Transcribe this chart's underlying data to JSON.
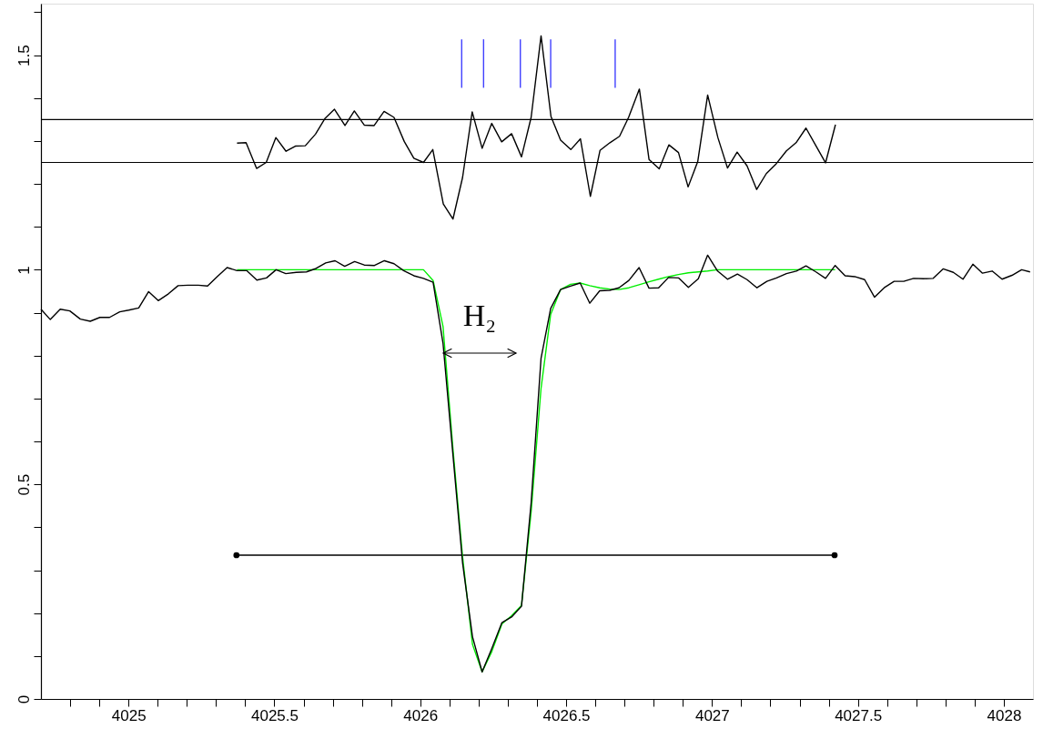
{
  "chart_data": {
    "type": "line",
    "xlim": [
      4024.7,
      4028.1
    ],
    "ylim": [
      0,
      1.62
    ],
    "xticks": [
      {
        "value": 4024.8,
        "label": null
      },
      {
        "value": 4024.9,
        "label": null
      },
      4025,
      {
        "value": 4025.1,
        "label": null
      },
      {
        "value": 4025.2,
        "label": null
      },
      {
        "value": 4025.3,
        "label": null
      },
      {
        "value": 4025.4,
        "label": null
      },
      4025.5,
      {
        "value": 4025.6,
        "label": null
      },
      {
        "value": 4025.7,
        "label": null
      },
      {
        "value": 4025.8,
        "label": null
      },
      {
        "value": 4025.9,
        "label": null
      },
      4026,
      {
        "value": 4026.1,
        "label": null
      },
      {
        "value": 4026.2,
        "label": null
      },
      {
        "value": 4026.3,
        "label": null
      },
      {
        "value": 4026.4,
        "label": null
      },
      4026.5,
      {
        "value": 4026.6,
        "label": null
      },
      {
        "value": 4026.7,
        "label": null
      },
      {
        "value": 4026.8,
        "label": null
      },
      {
        "value": 4026.9,
        "label": null
      },
      4027,
      {
        "value": 4027.1,
        "label": null
      },
      {
        "value": 4027.2,
        "label": null
      },
      {
        "value": 4027.3,
        "label": null
      },
      {
        "value": 4027.4,
        "label": null
      },
      4027.5,
      {
        "value": 4027.6,
        "label": null
      },
      {
        "value": 4027.7,
        "label": null
      },
      {
        "value": 4027.8,
        "label": null
      },
      {
        "value": 4027.9,
        "label": null
      },
      4028
    ],
    "yticks": [
      0,
      {
        "value": 0.1,
        "label": null
      },
      {
        "value": 0.2,
        "label": null
      },
      {
        "value": 0.3,
        "label": null
      },
      {
        "value": 0.4,
        "label": null
      },
      0.5,
      {
        "value": 0.6,
        "label": null
      },
      {
        "value": 0.7,
        "label": null
      },
      {
        "value": 0.8,
        "label": null
      },
      {
        "value": 0.9,
        "label": null
      },
      1,
      {
        "value": 1.1,
        "label": null
      },
      {
        "value": 1.2,
        "label": null
      },
      {
        "value": 1.3,
        "label": null
      },
      {
        "value": 1.4,
        "label": null
      },
      1.5,
      {
        "value": 1.6,
        "label": null
      }
    ],
    "grid": false,
    "line_style": "solid",
    "ref_lines": [
      {
        "axis": "y",
        "value": 1.25,
        "color": "#000000"
      },
      {
        "axis": "y",
        "value": 1.35,
        "color": "#000000"
      }
    ],
    "annotations": [
      "H₂"
    ],
    "series": [
      {
        "color": "#000000",
        "x": [
          4024.7,
          4024.732,
          4024.766,
          4024.799,
          4024.835,
          4024.869,
          4024.902,
          4024.935,
          4024.97,
          4025.001,
          4025.035,
          4025.069,
          4025.102,
          4025.137,
          4025.17,
          4025.204,
          4025.239,
          4025.271,
          4025.304,
          4025.338,
          4025.372,
          4025.405,
          4025.44,
          4025.473,
          4025.506,
          4025.539,
          4025.575,
          4025.61,
          4025.643,
          4025.676,
          4025.708,
          4025.741,
          4025.775,
          4025.808,
          4025.843,
          4025.877,
          4025.91,
          4025.943,
          4025.978,
          4026.011,
          4026.044,
          4026.078,
          4026.112,
          4026.145,
          4026.179,
          4026.212,
          4026.245,
          4026.28,
          4026.313,
          4026.347,
          4026.38,
          4026.414,
          4026.447,
          4026.481,
          4026.515,
          4026.548,
          4026.581,
          4026.615,
          4026.649,
          4026.681,
          4026.715,
          4026.75,
          4026.784,
          4026.817,
          4026.851,
          4026.885,
          4026.919,
          4026.953,
          4026.985,
          4027.019,
          4027.053,
          4027.087,
          4027.12,
          4027.154,
          4027.188,
          4027.221,
          4027.255,
          4027.289,
          4027.322,
          4027.356,
          4027.389,
          4027.422,
          4027.456,
          4027.489,
          4027.523,
          4027.557,
          4027.59,
          4027.624,
          4027.657,
          4027.691,
          4027.725,
          4027.758,
          4027.792,
          4027.827,
          4027.86,
          4027.894,
          4027.927,
          4027.96,
          4027.994,
          4028.028,
          4028.061,
          4028.09
        ],
        "values": [
          0.908,
          0.884,
          0.908,
          0.904,
          0.885,
          0.88,
          0.889,
          0.889,
          0.902,
          0.906,
          0.911,
          0.949,
          0.928,
          0.944,
          0.963,
          0.964,
          0.964,
          0.962,
          0.984,
          1.005,
          0.998,
          0.998,
          0.976,
          0.981,
          1.0,
          0.991,
          0.994,
          0.995,
          1.003,
          1.016,
          1.021,
          1.008,
          1.019,
          1.011,
          1.01,
          1.021,
          1.014,
          0.998,
          0.986,
          0.98,
          0.971,
          0.829,
          0.569,
          0.317,
          0.145,
          0.063,
          0.117,
          0.178,
          0.191,
          0.216,
          0.457,
          0.794,
          0.91,
          0.954,
          0.962,
          0.969,
          0.922,
          0.951,
          0.952,
          0.958,
          0.975,
          1.005,
          0.957,
          0.958,
          0.982,
          0.981,
          0.959,
          0.979,
          1.034,
          0.997,
          0.978,
          0.99,
          0.977,
          0.958,
          0.973,
          0.981,
          0.991,
          0.997,
          1.009,
          0.995,
          0.98,
          1.01,
          0.986,
          0.984,
          0.977,
          0.936,
          0.958,
          0.973,
          0.973,
          0.98,
          0.979,
          0.98,
          1.002,
          0.994,
          0.978,
          1.013,
          0.992,
          0.997,
          0.978,
          0.987,
          1.0,
          0.995
        ]
      },
      {
        "color": "#00ee00",
        "x": [
          4025.372,
          4025.539,
          4025.743,
          4025.943,
          4026.011,
          4026.044,
          4026.078,
          4026.112,
          4026.145,
          4026.179,
          4026.212,
          4026.245,
          4026.28,
          4026.313,
          4026.347,
          4026.38,
          4026.414,
          4026.447,
          4026.481,
          4026.515,
          4026.548,
          4026.581,
          4026.615,
          4026.649,
          4026.681,
          4026.715,
          4026.75,
          4026.784,
          4026.817,
          4026.851,
          4026.885,
          4026.919,
          4026.953,
          4026.985,
          4027.019,
          4027.2,
          4027.422
        ],
        "values": [
          1.0,
          1.0,
          1.0,
          1.0,
          1.0,
          0.975,
          0.868,
          0.583,
          0.331,
          0.127,
          0.063,
          0.11,
          0.175,
          0.194,
          0.218,
          0.436,
          0.724,
          0.896,
          0.954,
          0.966,
          0.969,
          0.963,
          0.958,
          0.955,
          0.954,
          0.958,
          0.965,
          0.972,
          0.978,
          0.984,
          0.989,
          0.993,
          0.995,
          0.997,
          1.0,
          1.0,
          1.0
        ]
      },
      {
        "color": "#000000",
        "x": [
          4025.372,
          4025.403,
          4025.439,
          4025.472,
          4025.505,
          4025.54,
          4025.572,
          4025.606,
          4025.641,
          4025.674,
          4025.706,
          4025.742,
          4025.774,
          4025.808,
          4025.842,
          4025.876,
          4025.91,
          4025.945,
          4025.978,
          4026.011,
          4026.043,
          4026.079,
          4026.112,
          4026.145,
          4026.178,
          4026.212,
          4026.245,
          4026.279,
          4026.313,
          4026.347,
          4026.38,
          4026.414,
          4026.448,
          4026.481,
          4026.516,
          4026.549,
          4026.583,
          4026.616,
          4026.65,
          4026.683,
          4026.714,
          4026.751,
          4026.784,
          4026.819,
          4026.852,
          4026.885,
          4026.918,
          4026.951,
          4026.985,
          4027.02,
          4027.053,
          4027.086,
          4027.12,
          4027.153,
          4027.186,
          4027.22,
          4027.255,
          4027.288,
          4027.322,
          4027.356,
          4027.389,
          4027.423
        ],
        "values": [
          1.295,
          1.296,
          1.236,
          1.25,
          1.308,
          1.276,
          1.288,
          1.289,
          1.316,
          1.353,
          1.374,
          1.336,
          1.37,
          1.337,
          1.336,
          1.369,
          1.355,
          1.299,
          1.26,
          1.25,
          1.28,
          1.153,
          1.118,
          1.215,
          1.368,
          1.283,
          1.341,
          1.298,
          1.317,
          1.263,
          1.355,
          1.545,
          1.357,
          1.302,
          1.28,
          1.305,
          1.171,
          1.278,
          1.296,
          1.311,
          1.355,
          1.421,
          1.257,
          1.235,
          1.291,
          1.273,
          1.193,
          1.252,
          1.407,
          1.308,
          1.237,
          1.274,
          1.242,
          1.187,
          1.224,
          1.247,
          1.277,
          1.296,
          1.33,
          1.289,
          1.249,
          1.338
        ]
      },
      {
        "color": "#000000",
        "marker": "circle",
        "x": [
          4025.37,
          4027.42
        ],
        "values": [
          0.335,
          0.335
        ]
      },
      {
        "color": "#4040ff",
        "x": [
          4026.142,
          4026.142
        ],
        "values": [
          1.424,
          1.537
        ]
      },
      {
        "color": "#4040ff",
        "x": [
          4026.217,
          4026.217
        ],
        "values": [
          1.424,
          1.537
        ]
      },
      {
        "color": "#4040ff",
        "x": [
          4026.343,
          4026.343
        ],
        "values": [
          1.424,
          1.537
        ]
      },
      {
        "color": "#4040ff",
        "x": [
          4026.447,
          4026.447
        ],
        "values": [
          1.424,
          1.537
        ]
      },
      {
        "color": "#4040ff",
        "x": [
          4026.668,
          4026.668
        ],
        "values": [
          1.424,
          1.537
        ]
      }
    ]
  }
}
